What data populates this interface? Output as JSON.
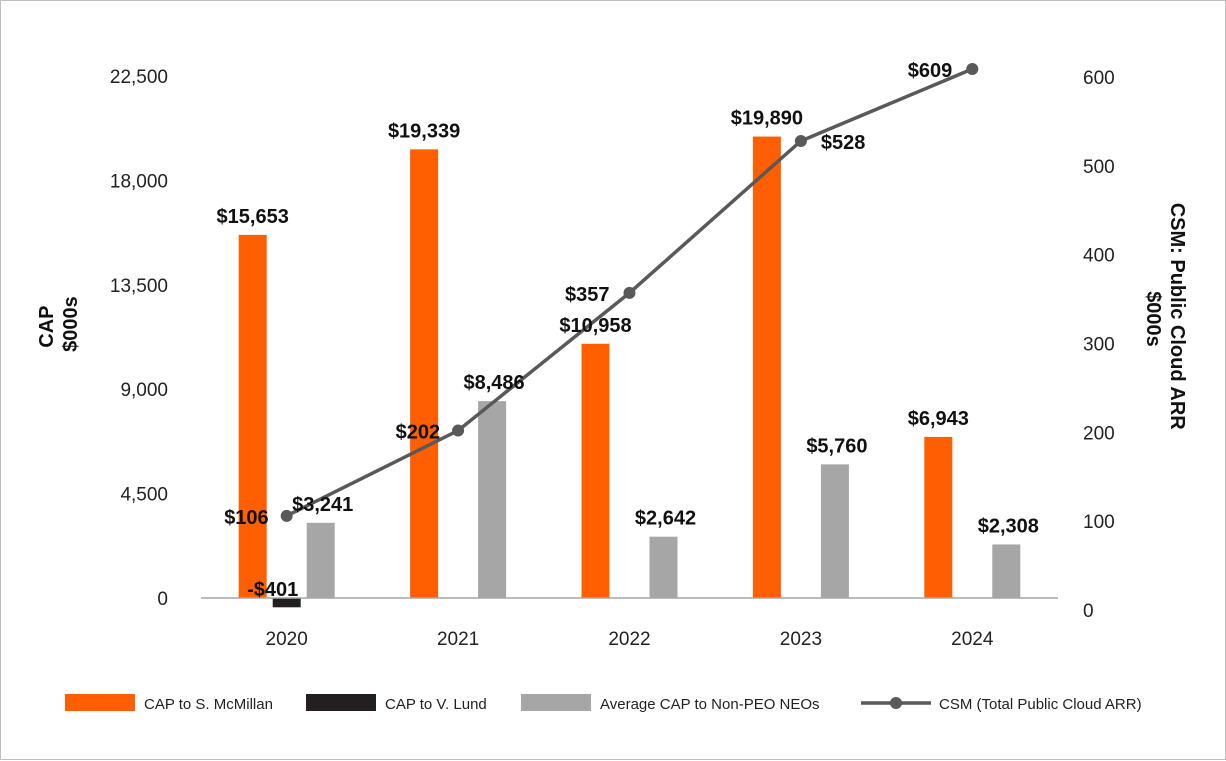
{
  "chart_data": {
    "type": "bar",
    "categories": [
      "2020",
      "2021",
      "2022",
      "2023",
      "2024"
    ],
    "series": [
      {
        "name": "CAP to S. McMillan",
        "axis": "left",
        "color": "#ff5f00",
        "values": [
          15653,
          19339,
          10958,
          19890,
          6943
        ],
        "labels": [
          "$15,653",
          "$19,339",
          "$10,958",
          "$19,890",
          "$6,943"
        ]
      },
      {
        "name": "CAP to V. Lund",
        "axis": "left",
        "color": "#231f20",
        "values": [
          -401,
          null,
          null,
          null,
          null
        ],
        "labels": [
          "-$401",
          "",
          "",
          "",
          ""
        ]
      },
      {
        "name": "Average CAP to Non-PEO NEOs",
        "axis": "left",
        "color": "#a6a6a6",
        "values": [
          3241,
          8486,
          2642,
          5760,
          2308
        ],
        "labels": [
          "$3,241",
          "$8,486",
          "$2,642",
          "$5,760",
          "$2,308"
        ]
      },
      {
        "name": "CSM (Total Public Cloud ARR)",
        "type": "line",
        "axis": "right",
        "color": "#595959",
        "values": [
          106,
          202,
          357,
          528,
          609
        ],
        "labels": [
          "$106",
          "$202",
          "$357",
          "$528",
          "$609"
        ]
      }
    ],
    "y_left": {
      "title_lines": [
        "CAP",
        "$000s"
      ],
      "ticks": [
        "0",
        "4,500",
        "9,000",
        "13,500",
        "18,000",
        "22,500"
      ],
      "tick_values": [
        0,
        4500,
        9000,
        13500,
        18000,
        22500
      ],
      "ylim": [
        -1000,
        23000
      ]
    },
    "y_right": {
      "title_lines": [
        "CSM: Public Cloud ARR",
        "$000s"
      ],
      "ticks": [
        "0",
        "100",
        "200",
        "300",
        "400",
        "500",
        "600"
      ],
      "tick_values": [
        0,
        100,
        200,
        300,
        400,
        500,
        600
      ],
      "ylim": [
        0,
        600
      ]
    },
    "grid": false,
    "legend_position": "bottom"
  }
}
